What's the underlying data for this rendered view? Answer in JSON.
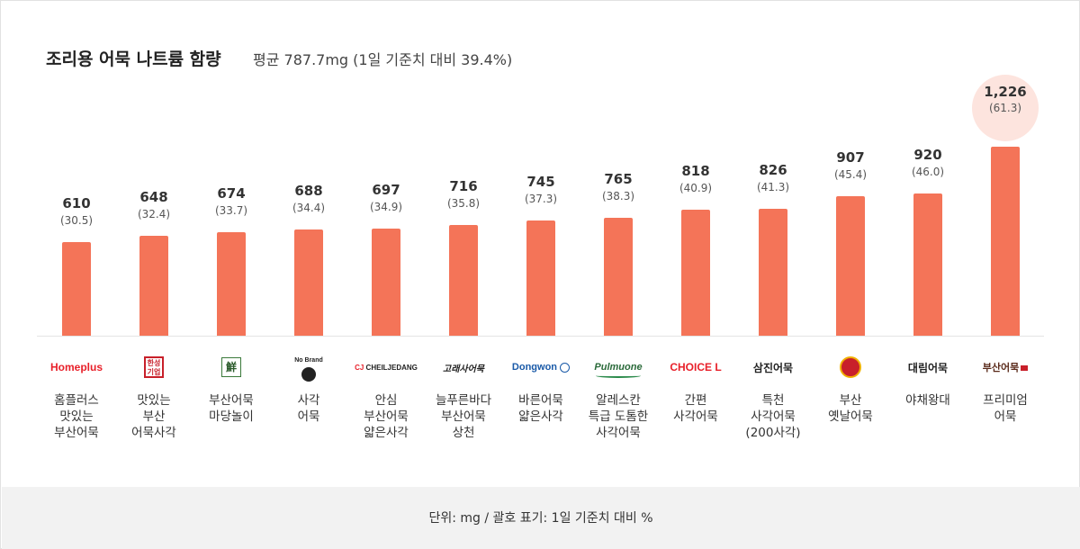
{
  "header": {
    "title": "조리용 어묵 나트륨 함량",
    "subtitle": "평균 787.7mg (1일 기준치 대비 39.4%)"
  },
  "footer": {
    "note": "단위: mg / 괄호 표기: 1일 기준치 대비 %"
  },
  "colors": {
    "bar": "#f47458",
    "highlight_bg": "#fde4de",
    "footer_bg": "#f2f2f2"
  },
  "chart_data": {
    "type": "bar",
    "title": "조리용 어묵 나트륨 함량",
    "subtitle": "평균 787.7mg (1일 기준치 대비 39.4%)",
    "unit": "mg",
    "ylim": [
      0,
      1226
    ],
    "grid": false,
    "highlight_index": 12,
    "categories": [
      "홈플러스\n맛있는\n부산어묵",
      "맛있는\n부산\n어묵사각",
      "부산어묵\n마당놀이",
      "사각\n어묵",
      "안심\n부산어묵\n얇은사각",
      "늘푸른바다\n부산어묵\n상천",
      "바른어묵\n얇은사각",
      "알레스칸\n특급 도톰한\n사각어묵",
      "간편\n사각어묵",
      "특천\n사각어묵\n(200사각)",
      "부산\n옛날어묵",
      "야채왕대",
      "프리미엄\n어묵"
    ],
    "values": [
      610,
      648,
      674,
      688,
      697,
      716,
      745,
      765,
      818,
      826,
      907,
      920,
      1226
    ],
    "value_labels": [
      "610",
      "648",
      "674",
      "688",
      "697",
      "716",
      "745",
      "765",
      "818",
      "826",
      "907",
      "920",
      "1,226"
    ],
    "percent_labels": [
      "(30.5)",
      "(32.4)",
      "(33.7)",
      "(34.4)",
      "(34.9)",
      "(35.8)",
      "(37.3)",
      "(38.3)",
      "(40.9)",
      "(41.3)",
      "(45.4)",
      "(46.0)",
      "(61.3)"
    ],
    "brand_logos": [
      {
        "name": "homeplus-logo",
        "text": "Homeplus"
      },
      {
        "name": "hanseong-logo",
        "text": "한성\n기업"
      },
      {
        "name": "daerim-seon-logo",
        "text": "鮮"
      },
      {
        "name": "no-brand-logo",
        "text": "No Brand"
      },
      {
        "name": "cj-logo",
        "text": "CJ CHEILJEDANG"
      },
      {
        "name": "goraesa-logo",
        "text": "고래사어묵"
      },
      {
        "name": "dongwon-logo",
        "text": "Dongwon"
      },
      {
        "name": "pulmuone-logo",
        "text": "Pulmuone"
      },
      {
        "name": "choice-l-logo",
        "text": "CHOICE L"
      },
      {
        "name": "samjin-logo",
        "text": "삼진어묵"
      },
      {
        "name": "busan-old-logo",
        "text": ""
      },
      {
        "name": "daerim-logo",
        "text": "대림어묵"
      },
      {
        "name": "busan-eomuk-logo",
        "text": "부산어묵"
      }
    ]
  }
}
